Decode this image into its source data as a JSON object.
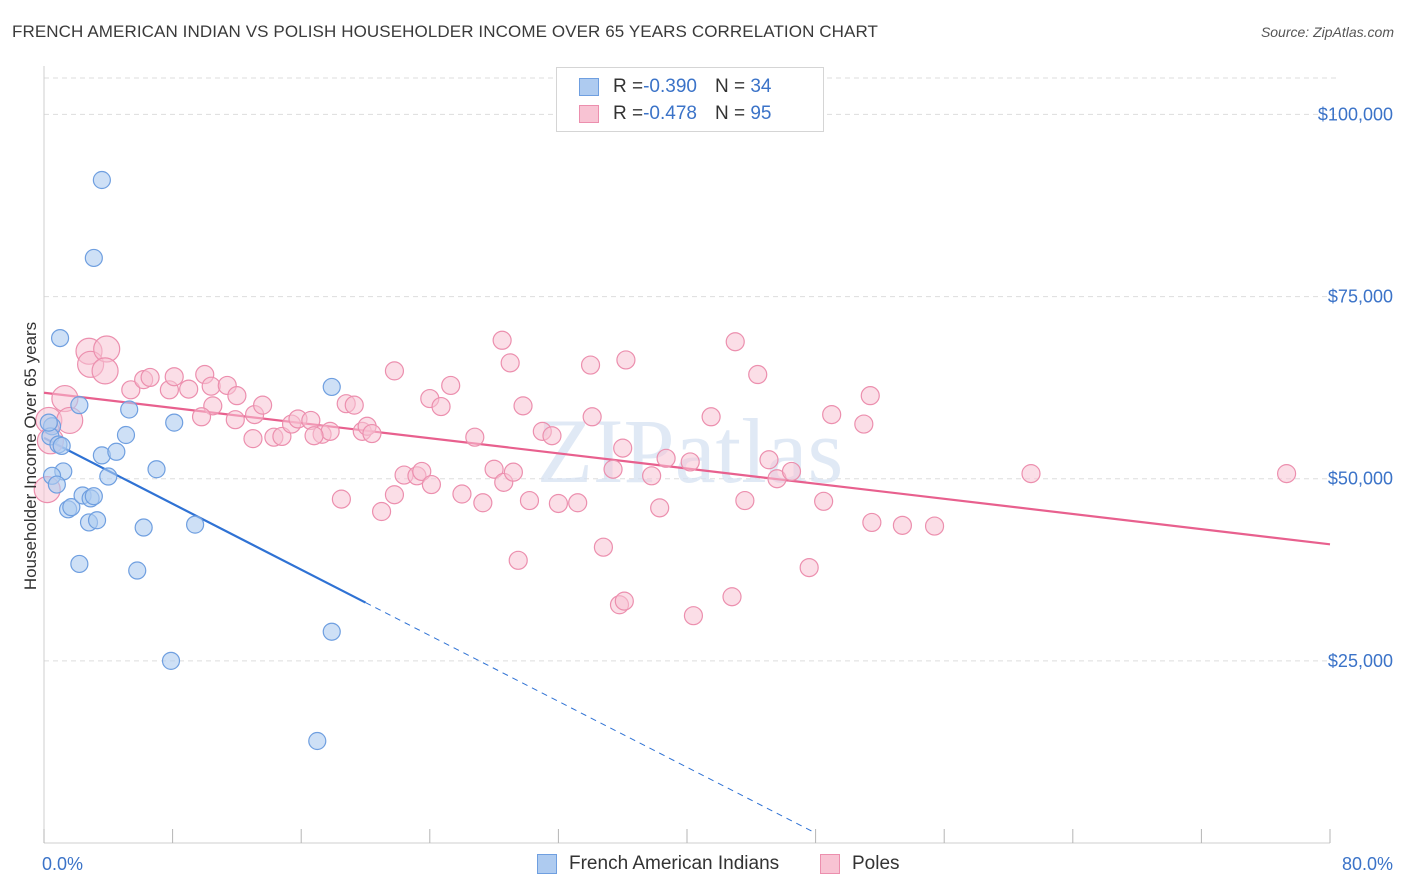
{
  "header": {
    "title": "FRENCH AMERICAN INDIAN VS POLISH HOUSEHOLDER INCOME OVER 65 YEARS CORRELATION CHART",
    "source": "Source: ZipAtlas.com"
  },
  "watermark": "ZIPatlas",
  "legend": {
    "rows": [
      {
        "r_label": "R = ",
        "r_value": "-0.390",
        "n_label": "N = ",
        "n_value": "34"
      },
      {
        "r_label": "R = ",
        "r_value": "-0.478",
        "n_label": "N = ",
        "n_value": "95"
      }
    ]
  },
  "colors": {
    "blue_fill": "#aecbf0",
    "blue_stroke": "#6f9fe0",
    "blue_line": "#2f72d4",
    "pink_fill": "#f8c3d3",
    "pink_stroke": "#ec8fae",
    "pink_line": "#e8608e",
    "tick_text": "#3b73c8",
    "grid": "#dddddd"
  },
  "chart_data": {
    "type": "scatter",
    "title": "FRENCH AMERICAN INDIAN VS POLISH HOUSEHOLDER INCOME OVER 65 YEARS CORRELATION CHART",
    "xlabel": "",
    "ylabel": "Householder Income Over 65 years",
    "xlim": [
      0,
      80
    ],
    "ylim": [
      0,
      105000
    ],
    "x_tick_labels": [
      "0.0%",
      "80.0%"
    ],
    "y_ticks": [
      25000,
      50000,
      75000,
      100000
    ],
    "y_tick_labels": [
      "$25,000",
      "$50,000",
      "$75,000",
      "$100,000"
    ],
    "grid": true,
    "legend_position": "top-center",
    "series": [
      {
        "name": "French American Indians",
        "color": "#aecbf0",
        "trend": {
          "x0": 0.0,
          "y0": 55600,
          "x1": 20.0,
          "y1": 33000,
          "dashed_to_x": 48.0
        },
        "points": [
          [
            3.6,
            91000
          ],
          [
            3.1,
            80300
          ],
          [
            1.0,
            69300
          ],
          [
            0.5,
            57200
          ],
          [
            0.4,
            55800
          ],
          [
            0.9,
            54700
          ],
          [
            2.2,
            60100
          ],
          [
            1.2,
            51000
          ],
          [
            0.5,
            50400
          ],
          [
            0.8,
            49200
          ],
          [
            1.5,
            45800
          ],
          [
            1.7,
            46100
          ],
          [
            2.4,
            47700
          ],
          [
            2.9,
            47300
          ],
          [
            3.1,
            47600
          ],
          [
            2.8,
            44000
          ],
          [
            3.3,
            44300
          ],
          [
            3.6,
            53200
          ],
          [
            4.5,
            53700
          ],
          [
            5.1,
            56000
          ],
          [
            5.3,
            59500
          ],
          [
            4.0,
            50300
          ],
          [
            8.1,
            57700
          ],
          [
            7.0,
            51300
          ],
          [
            6.2,
            43300
          ],
          [
            9.4,
            43700
          ],
          [
            2.2,
            38300
          ],
          [
            5.8,
            37400
          ],
          [
            17.9,
            62600
          ],
          [
            17.9,
            29000
          ],
          [
            7.9,
            25000
          ],
          [
            17.0,
            14000
          ],
          [
            0.3,
            57700
          ],
          [
            1.1,
            54500
          ]
        ]
      },
      {
        "name": "Poles",
        "color": "#f8c3d3",
        "trend": {
          "x0": 0.0,
          "y0": 61800,
          "x1": 80.0,
          "y1": 41000
        },
        "points": [
          [
            0.3,
            58000
          ],
          [
            0.4,
            55200
          ],
          [
            0.2,
            48500
          ],
          [
            1.3,
            61000
          ],
          [
            1.6,
            58000
          ],
          [
            2.8,
            67500
          ],
          [
            2.9,
            65700
          ],
          [
            3.9,
            67800
          ],
          [
            3.8,
            64800
          ],
          [
            5.4,
            62200
          ],
          [
            6.2,
            63600
          ],
          [
            6.6,
            63900
          ],
          [
            7.8,
            62200
          ],
          [
            8.1,
            64000
          ],
          [
            9.0,
            62300
          ],
          [
            10.0,
            64300
          ],
          [
            10.4,
            62700
          ],
          [
            11.4,
            62800
          ],
          [
            12.0,
            61400
          ],
          [
            10.5,
            60000
          ],
          [
            11.9,
            58100
          ],
          [
            13.1,
            58800
          ],
          [
            13.6,
            60100
          ],
          [
            14.3,
            55700
          ],
          [
            14.8,
            55800
          ],
          [
            15.4,
            57500
          ],
          [
            15.8,
            58200
          ],
          [
            16.6,
            58000
          ],
          [
            17.3,
            56100
          ],
          [
            17.8,
            56500
          ],
          [
            18.8,
            60300
          ],
          [
            19.3,
            60100
          ],
          [
            19.8,
            56500
          ],
          [
            20.1,
            57200
          ],
          [
            21.8,
            64800
          ],
          [
            24.0,
            61000
          ],
          [
            24.7,
            59900
          ],
          [
            25.3,
            62800
          ],
          [
            28.5,
            69000
          ],
          [
            29.0,
            65900
          ],
          [
            29.8,
            60000
          ],
          [
            31.0,
            56500
          ],
          [
            31.6,
            55900
          ],
          [
            34.0,
            65600
          ],
          [
            34.1,
            58500
          ],
          [
            36.2,
            66300
          ],
          [
            38.7,
            52800
          ],
          [
            43.0,
            68800
          ],
          [
            41.5,
            58500
          ],
          [
            44.4,
            64300
          ],
          [
            49.0,
            58800
          ],
          [
            51.0,
            57500
          ],
          [
            51.4,
            61400
          ],
          [
            26.8,
            55700
          ],
          [
            28.0,
            51300
          ],
          [
            28.6,
            49500
          ],
          [
            29.2,
            50900
          ],
          [
            22.4,
            50500
          ],
          [
            23.2,
            50400
          ],
          [
            23.5,
            51000
          ],
          [
            24.1,
            49200
          ],
          [
            27.3,
            46700
          ],
          [
            18.5,
            47200
          ],
          [
            21.0,
            45500
          ],
          [
            21.8,
            47800
          ],
          [
            30.2,
            47000
          ],
          [
            32.0,
            46600
          ],
          [
            33.2,
            46700
          ],
          [
            35.4,
            51300
          ],
          [
            36.0,
            54200
          ],
          [
            37.8,
            50400
          ],
          [
            38.3,
            46000
          ],
          [
            43.6,
            47000
          ],
          [
            45.1,
            52600
          ],
          [
            45.6,
            50000
          ],
          [
            46.5,
            51000
          ],
          [
            40.2,
            52300
          ],
          [
            51.5,
            44000
          ],
          [
            53.4,
            43600
          ],
          [
            55.4,
            43500
          ],
          [
            29.5,
            38800
          ],
          [
            34.8,
            40600
          ],
          [
            35.8,
            32700
          ],
          [
            36.1,
            33200
          ],
          [
            40.4,
            31200
          ],
          [
            42.8,
            33800
          ],
          [
            47.6,
            37800
          ],
          [
            61.4,
            50700
          ],
          [
            77.3,
            50700
          ],
          [
            48.5,
            46900
          ],
          [
            26.0,
            47900
          ],
          [
            16.8,
            55900
          ],
          [
            20.4,
            56200
          ],
          [
            9.8,
            58500
          ],
          [
            13.0,
            55500
          ]
        ]
      }
    ]
  },
  "bottom_legend": {
    "items": [
      "French American Indians",
      "Poles"
    ]
  }
}
